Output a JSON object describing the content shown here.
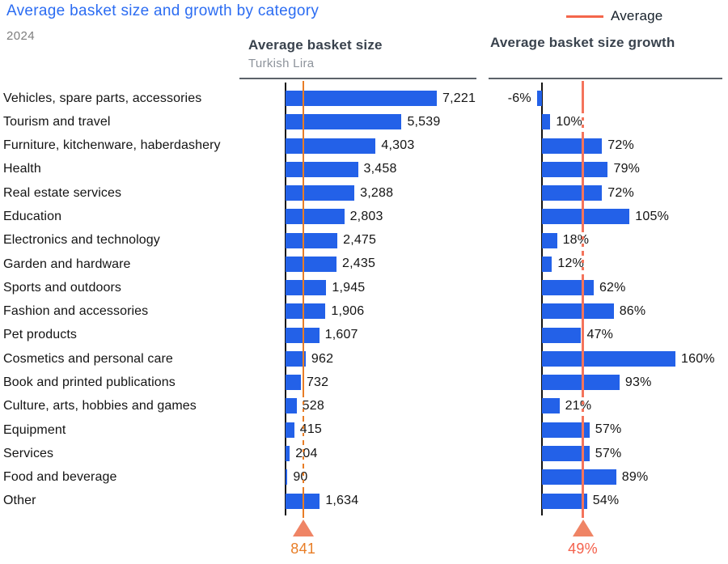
{
  "title": "Average basket size and growth by category",
  "year": "2024",
  "legend": {
    "label": "Average"
  },
  "style": {
    "bar_color": "#2361E8",
    "title_color": "#2B6CF2",
    "year_color": "#7D7D7D",
    "header_color": "#39424D",
    "subtitle_color": "#8D939B",
    "rule_color": "#5C636A",
    "axis_color": "#141414",
    "text_color": "#141414",
    "legend_line_color": "#F4664B",
    "size_line_color": "#E87D26",
    "size_label_color": "#E87D26",
    "growth_line_color": "#F4745C",
    "growth_label_color": "#F4614C",
    "triangle_fill": "#EF8465"
  },
  "chart_data": {
    "type": "bar",
    "orientation": "horizontal",
    "title": "Average basket size and growth by category",
    "subtitle": "2024",
    "legend_label": "Average",
    "legend_position": "top-right",
    "grid": false,
    "categories": [
      "Vehicles, spare parts, accessories",
      "Tourism and travel",
      "Furniture, kitchenware, haberdashery",
      "Health",
      "Real estate services",
      "Education",
      "Electronics and technology",
      "Garden and hardware",
      "Sports and outdoors",
      "Fashion and accessories",
      "Pet products",
      "Cosmetics and personal care",
      "Book and printed publications",
      "Culture, arts, hobbies and games",
      "Equipment",
      "Services",
      "Food and beverage",
      "Other"
    ],
    "series": [
      {
        "name": "Average basket size",
        "unit_label": "Turkish Lira",
        "values": [
          7221,
          5539,
          4303,
          3458,
          3288,
          2803,
          2475,
          2435,
          1945,
          1906,
          1607,
          962,
          732,
          528,
          415,
          204,
          90,
          1634
        ],
        "labels": [
          "7,221",
          "5,539",
          "4,303",
          "3,458",
          "3,288",
          "2,803",
          "2,475",
          "2,435",
          "1,945",
          "1,906",
          "1,607",
          "962",
          "732",
          "528",
          "415",
          "204",
          "90",
          "1,634"
        ],
        "average": 841,
        "average_label": "841",
        "xmax": 7221
      },
      {
        "name": "Average basket size growth",
        "unit_label": "",
        "values": [
          -6,
          10,
          72,
          79,
          72,
          105,
          18,
          12,
          62,
          86,
          47,
          160,
          93,
          21,
          57,
          57,
          89,
          54
        ],
        "labels": [
          "-6%",
          "10%",
          "72%",
          "79%",
          "72%",
          "105%",
          "18%",
          "12%",
          "62%",
          "86%",
          "47%",
          "160%",
          "93%",
          "21%",
          "57%",
          "57%",
          "89%",
          "54%"
        ],
        "average": 49,
        "average_label": "49%",
        "xmax": 160,
        "xmin": -6
      }
    ]
  }
}
